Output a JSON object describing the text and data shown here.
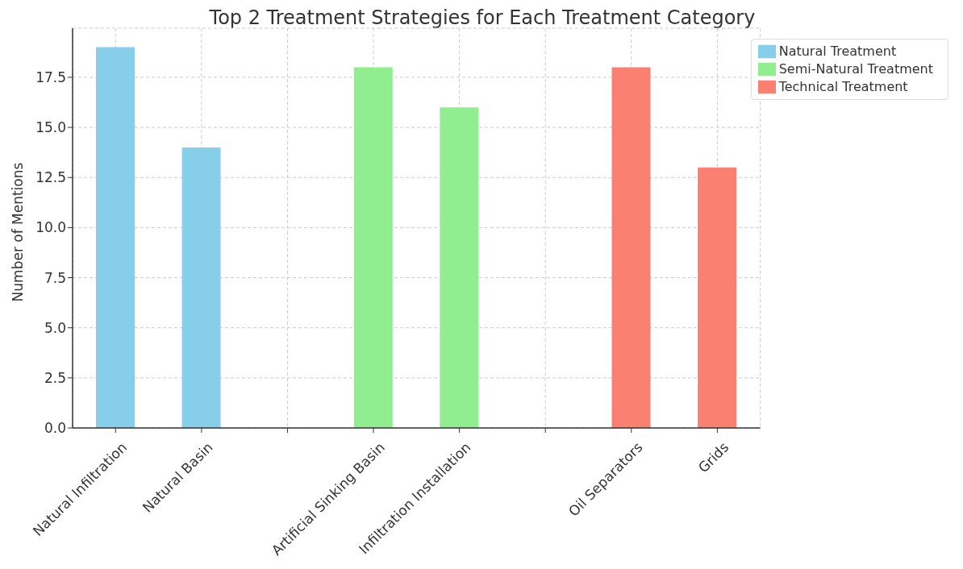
{
  "chart_data": {
    "type": "bar",
    "title": "Top 2 Treatment Strategies for Each Treatment Category",
    "ylabel": "Number of Mentions",
    "categories": [
      "Natural Infiltration",
      "Natural Basin",
      null,
      "Artificial Sinking Basin",
      "Infiltration Installation",
      null,
      "Oil Separators",
      "Grids"
    ],
    "series": [
      {
        "name": "Natural Treatment",
        "color": "#87ceeb",
        "values": [
          19,
          14,
          null,
          null,
          null,
          null,
          null,
          null
        ]
      },
      {
        "name": "Semi-Natural Treatment",
        "color": "#90ee90",
        "values": [
          null,
          null,
          null,
          18,
          16,
          null,
          null,
          null
        ]
      },
      {
        "name": "Technical Treatment",
        "color": "#fa8072",
        "values": [
          null,
          null,
          null,
          null,
          null,
          null,
          18,
          13
        ]
      }
    ],
    "ylim": [
      0,
      19.95
    ],
    "yticks": [
      {
        "value": 0,
        "label": "0.0"
      },
      {
        "value": 2.5,
        "label": "2.5"
      },
      {
        "value": 5,
        "label": "5.0"
      },
      {
        "value": 7.5,
        "label": "7.5"
      },
      {
        "value": 10,
        "label": "10.0"
      },
      {
        "value": 12.5,
        "label": "12.5"
      },
      {
        "value": 15,
        "label": "15.0"
      },
      {
        "value": 17.5,
        "label": "17.5"
      }
    ],
    "grid": true,
    "legend": "top right"
  }
}
